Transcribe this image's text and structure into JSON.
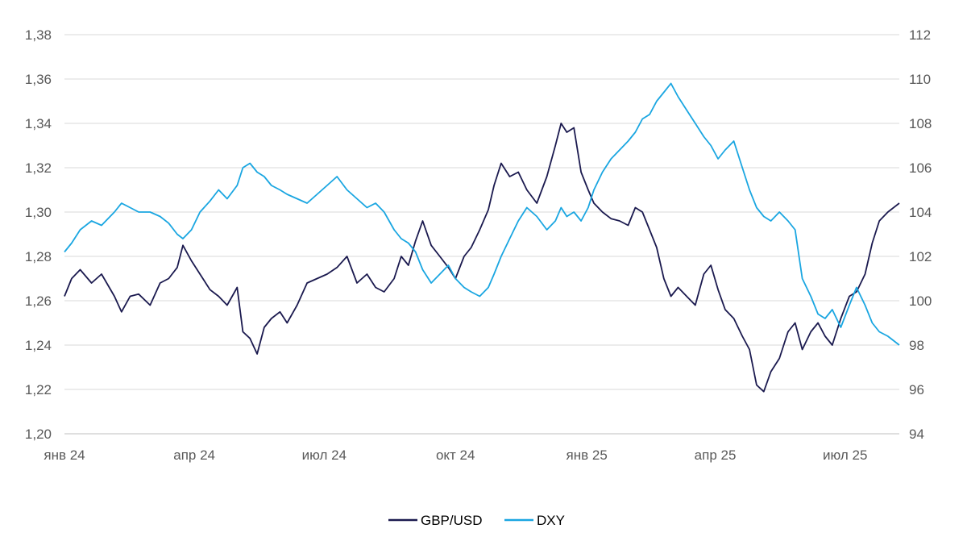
{
  "chart_data": {
    "type": "line",
    "title": "",
    "xlabel": "",
    "ylabel": "",
    "x_ticks": [
      "янв 24",
      "апр 24",
      "июл 24",
      "окт 24",
      "янв 25",
      "апр 25",
      "июл 25"
    ],
    "x_tick_dates": [
      "2024-01-01",
      "2024-04-01",
      "2024-07-01",
      "2024-10-01",
      "2025-01-01",
      "2025-04-01",
      "2025-07-01"
    ],
    "x_range": [
      "2024-01-01",
      "2025-08-08"
    ],
    "y_left": {
      "ylim": [
        1.2,
        1.38
      ],
      "ticks": [
        "1,20",
        "1,22",
        "1,24",
        "1,26",
        "1,28",
        "1,30",
        "1,32",
        "1,34",
        "1,36",
        "1,38"
      ]
    },
    "y_right": {
      "ylim": [
        94,
        112
      ],
      "ticks": [
        "94",
        "96",
        "98",
        "100",
        "102",
        "104",
        "106",
        "108",
        "110",
        "112"
      ]
    },
    "grid": "horizontal",
    "legend_position": "bottom-center",
    "series": [
      {
        "name": "GBP/USD",
        "axis": "left",
        "color": "#1b1a4f",
        "points": [
          [
            "2024-01-01",
            1.262
          ],
          [
            "2024-01-06",
            1.27
          ],
          [
            "2024-01-12",
            1.274
          ],
          [
            "2024-01-20",
            1.268
          ],
          [
            "2024-01-27",
            1.272
          ],
          [
            "2024-02-05",
            1.262
          ],
          [
            "2024-02-10",
            1.255
          ],
          [
            "2024-02-16",
            1.262
          ],
          [
            "2024-02-22",
            1.263
          ],
          [
            "2024-03-01",
            1.258
          ],
          [
            "2024-03-08",
            1.268
          ],
          [
            "2024-03-14",
            1.27
          ],
          [
            "2024-03-20",
            1.275
          ],
          [
            "2024-03-24",
            1.285
          ],
          [
            "2024-03-30",
            1.278
          ],
          [
            "2024-04-05",
            1.272
          ],
          [
            "2024-04-12",
            1.265
          ],
          [
            "2024-04-18",
            1.262
          ],
          [
            "2024-04-24",
            1.258
          ],
          [
            "2024-05-01",
            1.266
          ],
          [
            "2024-05-05",
            1.246
          ],
          [
            "2024-05-10",
            1.243
          ],
          [
            "2024-05-15",
            1.236
          ],
          [
            "2024-05-20",
            1.248
          ],
          [
            "2024-05-25",
            1.252
          ],
          [
            "2024-05-31",
            1.255
          ],
          [
            "2024-06-05",
            1.25
          ],
          [
            "2024-06-12",
            1.258
          ],
          [
            "2024-06-19",
            1.268
          ],
          [
            "2024-06-26",
            1.27
          ],
          [
            "2024-07-03",
            1.272
          ],
          [
            "2024-07-10",
            1.275
          ],
          [
            "2024-07-17",
            1.28
          ],
          [
            "2024-07-24",
            1.268
          ],
          [
            "2024-07-31",
            1.272
          ],
          [
            "2024-08-06",
            1.266
          ],
          [
            "2024-08-12",
            1.264
          ],
          [
            "2024-08-19",
            1.27
          ],
          [
            "2024-08-24",
            1.28
          ],
          [
            "2024-08-29",
            1.276
          ],
          [
            "2024-09-03",
            1.287
          ],
          [
            "2024-09-08",
            1.296
          ],
          [
            "2024-09-14",
            1.285
          ],
          [
            "2024-09-20",
            1.28
          ],
          [
            "2024-09-26",
            1.275
          ],
          [
            "2024-10-01",
            1.27
          ],
          [
            "2024-10-07",
            1.28
          ],
          [
            "2024-10-12",
            1.284
          ],
          [
            "2024-10-18",
            1.292
          ],
          [
            "2024-10-24",
            1.301
          ],
          [
            "2024-10-28",
            1.312
          ],
          [
            "2024-11-02",
            1.322
          ],
          [
            "2024-11-08",
            1.316
          ],
          [
            "2024-11-14",
            1.318
          ],
          [
            "2024-11-20",
            1.31
          ],
          [
            "2024-11-27",
            1.304
          ],
          [
            "2024-12-04",
            1.316
          ],
          [
            "2024-12-10",
            1.33
          ],
          [
            "2024-12-14",
            1.34
          ],
          [
            "2024-12-18",
            1.336
          ],
          [
            "2024-12-23",
            1.338
          ],
          [
            "2024-12-28",
            1.318
          ],
          [
            "2025-01-02",
            1.31
          ],
          [
            "2025-01-06",
            1.304
          ],
          [
            "2025-01-12",
            1.3
          ],
          [
            "2025-01-18",
            1.297
          ],
          [
            "2025-01-24",
            1.296
          ],
          [
            "2025-01-30",
            1.294
          ],
          [
            "2025-02-04",
            1.302
          ],
          [
            "2025-02-09",
            1.3
          ],
          [
            "2025-02-14",
            1.292
          ],
          [
            "2025-02-19",
            1.284
          ],
          [
            "2025-02-24",
            1.27
          ],
          [
            "2025-03-01",
            1.262
          ],
          [
            "2025-03-06",
            1.266
          ],
          [
            "2025-03-12",
            1.262
          ],
          [
            "2025-03-18",
            1.258
          ],
          [
            "2025-03-24",
            1.272
          ],
          [
            "2025-03-29",
            1.276
          ],
          [
            "2025-04-03",
            1.265
          ],
          [
            "2025-04-08",
            1.256
          ],
          [
            "2025-04-14",
            1.252
          ],
          [
            "2025-04-20",
            1.244
          ],
          [
            "2025-04-25",
            1.238
          ],
          [
            "2025-04-30",
            1.222
          ],
          [
            "2025-05-05",
            1.219
          ],
          [
            "2025-05-10",
            1.228
          ],
          [
            "2025-05-16",
            1.234
          ],
          [
            "2025-05-22",
            1.246
          ],
          [
            "2025-05-27",
            1.25
          ],
          [
            "2025-06-01",
            1.238
          ],
          [
            "2025-06-07",
            1.246
          ],
          [
            "2025-06-12",
            1.25
          ],
          [
            "2025-06-17",
            1.244
          ],
          [
            "2025-06-22",
            1.24
          ],
          [
            "2025-06-28",
            1.252
          ],
          [
            "2025-07-04",
            1.262
          ],
          [
            "2025-07-09",
            1.264
          ],
          [
            "2025-07-15",
            1.272
          ],
          [
            "2025-07-20",
            1.286
          ],
          [
            "2025-07-25",
            1.296
          ],
          [
            "2025-07-31",
            1.3
          ],
          [
            "2025-08-08",
            1.304
          ]
        ]
      },
      {
        "name": "DXY",
        "axis": "right",
        "color": "#1aa6e1",
        "points": [
          [
            "2024-01-01",
            102.2
          ],
          [
            "2024-01-06",
            102.6
          ],
          [
            "2024-01-12",
            103.2
          ],
          [
            "2024-01-20",
            103.6
          ],
          [
            "2024-01-27",
            103.4
          ],
          [
            "2024-02-05",
            104.0
          ],
          [
            "2024-02-10",
            104.4
          ],
          [
            "2024-02-16",
            104.2
          ],
          [
            "2024-02-22",
            104.0
          ],
          [
            "2024-03-01",
            104.0
          ],
          [
            "2024-03-08",
            103.8
          ],
          [
            "2024-03-14",
            103.5
          ],
          [
            "2024-03-20",
            103.0
          ],
          [
            "2024-03-24",
            102.8
          ],
          [
            "2024-03-30",
            103.2
          ],
          [
            "2024-04-05",
            104.0
          ],
          [
            "2024-04-12",
            104.5
          ],
          [
            "2024-04-18",
            105.0
          ],
          [
            "2024-04-24",
            104.6
          ],
          [
            "2024-05-01",
            105.2
          ],
          [
            "2024-05-05",
            106.0
          ],
          [
            "2024-05-10",
            106.2
          ],
          [
            "2024-05-15",
            105.8
          ],
          [
            "2024-05-20",
            105.6
          ],
          [
            "2024-05-25",
            105.2
          ],
          [
            "2024-05-31",
            105.0
          ],
          [
            "2024-06-05",
            104.8
          ],
          [
            "2024-06-12",
            104.6
          ],
          [
            "2024-06-19",
            104.4
          ],
          [
            "2024-06-26",
            104.8
          ],
          [
            "2024-07-03",
            105.2
          ],
          [
            "2024-07-10",
            105.6
          ],
          [
            "2024-07-17",
            105.0
          ],
          [
            "2024-07-24",
            104.6
          ],
          [
            "2024-07-31",
            104.2
          ],
          [
            "2024-08-06",
            104.4
          ],
          [
            "2024-08-12",
            104.0
          ],
          [
            "2024-08-19",
            103.2
          ],
          [
            "2024-08-24",
            102.8
          ],
          [
            "2024-08-29",
            102.6
          ],
          [
            "2024-09-03",
            102.2
          ],
          [
            "2024-09-08",
            101.4
          ],
          [
            "2024-09-14",
            100.8
          ],
          [
            "2024-09-20",
            101.2
          ],
          [
            "2024-09-26",
            101.6
          ],
          [
            "2024-10-01",
            101.0
          ],
          [
            "2024-10-07",
            100.6
          ],
          [
            "2024-10-12",
            100.4
          ],
          [
            "2024-10-18",
            100.2
          ],
          [
            "2024-10-24",
            100.6
          ],
          [
            "2024-10-28",
            101.2
          ],
          [
            "2024-11-02",
            102.0
          ],
          [
            "2024-11-08",
            102.8
          ],
          [
            "2024-11-14",
            103.6
          ],
          [
            "2024-11-20",
            104.2
          ],
          [
            "2024-11-27",
            103.8
          ],
          [
            "2024-12-04",
            103.2
          ],
          [
            "2024-12-10",
            103.6
          ],
          [
            "2024-12-14",
            104.2
          ],
          [
            "2024-12-18",
            103.8
          ],
          [
            "2024-12-23",
            104.0
          ],
          [
            "2024-12-28",
            103.6
          ],
          [
            "2025-01-02",
            104.2
          ],
          [
            "2025-01-06",
            105.0
          ],
          [
            "2025-01-12",
            105.8
          ],
          [
            "2025-01-18",
            106.4
          ],
          [
            "2025-01-24",
            106.8
          ],
          [
            "2025-01-30",
            107.2
          ],
          [
            "2025-02-04",
            107.6
          ],
          [
            "2025-02-09",
            108.2
          ],
          [
            "2025-02-14",
            108.4
          ],
          [
            "2025-02-19",
            109.0
          ],
          [
            "2025-02-24",
            109.4
          ],
          [
            "2025-03-01",
            109.8
          ],
          [
            "2025-03-06",
            109.2
          ],
          [
            "2025-03-12",
            108.6
          ],
          [
            "2025-03-18",
            108.0
          ],
          [
            "2025-03-24",
            107.4
          ],
          [
            "2025-03-29",
            107.0
          ],
          [
            "2025-04-03",
            106.4
          ],
          [
            "2025-04-08",
            106.8
          ],
          [
            "2025-04-14",
            107.2
          ],
          [
            "2025-04-20",
            106.0
          ],
          [
            "2025-04-25",
            105.0
          ],
          [
            "2025-04-30",
            104.2
          ],
          [
            "2025-05-05",
            103.8
          ],
          [
            "2025-05-10",
            103.6
          ],
          [
            "2025-05-16",
            104.0
          ],
          [
            "2025-05-22",
            103.6
          ],
          [
            "2025-05-27",
            103.2
          ],
          [
            "2025-06-01",
            101.0
          ],
          [
            "2025-06-07",
            100.2
          ],
          [
            "2025-06-12",
            99.4
          ],
          [
            "2025-06-17",
            99.2
          ],
          [
            "2025-06-22",
            99.6
          ],
          [
            "2025-06-28",
            98.8
          ],
          [
            "2025-07-04",
            99.8
          ],
          [
            "2025-07-09",
            100.6
          ],
          [
            "2025-07-15",
            99.8
          ],
          [
            "2025-07-20",
            99.0
          ],
          [
            "2025-07-25",
            98.6
          ],
          [
            "2025-07-31",
            98.4
          ],
          [
            "2025-08-08",
            98.0
          ]
        ]
      }
    ]
  }
}
